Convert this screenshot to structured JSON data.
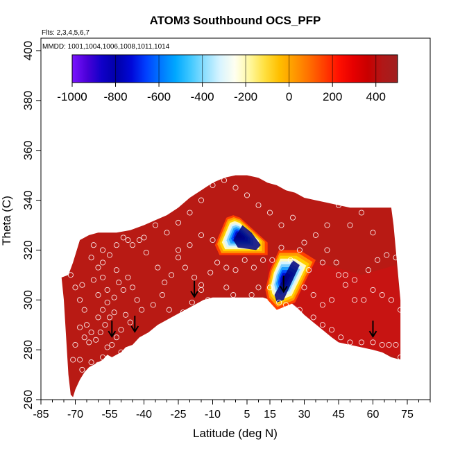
{
  "chart_data": {
    "type": "heatmap",
    "title": "ATOM3 Southbound OCS_PFP",
    "subtitle_flights": "Flts: 2,3,4,5,6,7",
    "subtitle_dates": "MMDD: 1001,1004,1006,1008,1011,1014",
    "xlabel": "Latitude (deg N)",
    "ylabel": "Theta (C)",
    "xlim": [
      -85,
      85
    ],
    "ylim": [
      260,
      405
    ],
    "x_ticks": [
      -85,
      -70,
      -55,
      -40,
      -25,
      -10,
      5,
      15,
      30,
      45,
      60,
      75
    ],
    "x_minor_step": 5,
    "y_ticks": [
      260,
      280,
      300,
      320,
      340,
      360,
      380,
      400
    ],
    "colorbar": {
      "range": [
        -1000,
        500
      ],
      "ticks": [
        -1000,
        -800,
        -600,
        -400,
        -200,
        0,
        200,
        400
      ],
      "colors": [
        "#7b14ff",
        "#4a00d8",
        "#1000c8",
        "#0000a8",
        "#0008d8",
        "#0040ff",
        "#0078ff",
        "#00a8ff",
        "#40c8ff",
        "#90e0ff",
        "#d8f4ff",
        "#fffff0",
        "#fff8a0",
        "#ffe040",
        "#ffbf00",
        "#ff9a00",
        "#ff7000",
        "#ff4000",
        "#ff1000",
        "#e60000",
        "#c80000",
        "#b01818",
        "#a02020"
      ]
    },
    "background_color": "#b81a14",
    "envelope_top": [
      [
        -76,
        309
      ],
      [
        -73,
        310
      ],
      [
        -71,
        315
      ],
      [
        -68,
        324
      ],
      [
        -64,
        326
      ],
      [
        -60,
        327
      ],
      [
        -52,
        327
      ],
      [
        -46,
        328
      ],
      [
        -40,
        330
      ],
      [
        -35,
        332
      ],
      [
        -30,
        334
      ],
      [
        -25,
        337
      ],
      [
        -20,
        341
      ],
      [
        -15,
        344
      ],
      [
        -10,
        347
      ],
      [
        -5,
        349
      ],
      [
        0,
        350
      ],
      [
        5,
        350
      ],
      [
        10,
        349
      ],
      [
        14,
        347
      ],
      [
        18,
        346
      ],
      [
        22,
        344
      ],
      [
        26,
        343
      ],
      [
        30,
        341
      ],
      [
        35,
        340
      ],
      [
        40,
        339
      ],
      [
        45,
        338
      ],
      [
        50,
        337
      ],
      [
        55,
        337
      ],
      [
        60,
        337
      ],
      [
        65,
        337
      ],
      [
        68,
        337
      ],
      [
        69,
        330
      ],
      [
        70,
        320
      ],
      [
        71,
        310
      ],
      [
        72,
        300
      ],
      [
        72,
        290
      ],
      [
        72,
        277
      ]
    ],
    "envelope_bottom": [
      [
        72,
        276
      ],
      [
        68,
        277
      ],
      [
        64,
        279
      ],
      [
        60,
        280
      ],
      [
        55,
        281
      ],
      [
        50,
        282
      ],
      [
        45,
        283
      ],
      [
        42,
        285
      ],
      [
        38,
        288
      ],
      [
        34,
        291
      ],
      [
        30,
        294
      ],
      [
        27,
        297
      ],
      [
        24,
        299
      ],
      [
        20,
        300
      ],
      [
        15,
        300
      ],
      [
        12,
        301
      ],
      [
        8,
        301
      ],
      [
        5,
        301
      ],
      [
        0,
        301
      ],
      [
        -5,
        301
      ],
      [
        -10,
        301
      ],
      [
        -14,
        300
      ],
      [
        -18,
        298
      ],
      [
        -22,
        296
      ],
      [
        -26,
        294
      ],
      [
        -30,
        292
      ],
      [
        -34,
        290
      ],
      [
        -38,
        287
      ],
      [
        -42,
        285
      ],
      [
        -45,
        282
      ],
      [
        -48,
        281
      ],
      [
        -50,
        279
      ],
      [
        -52,
        278
      ],
      [
        -54,
        277
      ],
      [
        -56,
        278
      ],
      [
        -58,
        276
      ],
      [
        -60,
        275
      ],
      [
        -62,
        274
      ],
      [
        -64,
        273
      ],
      [
        -66,
        271
      ],
      [
        -68,
        268
      ],
      [
        -69,
        266
      ],
      [
        -70,
        264
      ],
      [
        -71,
        261
      ],
      [
        -72,
        262
      ],
      [
        -73,
        270
      ],
      [
        -74,
        285
      ],
      [
        -75,
        300
      ],
      [
        -76,
        309
      ]
    ],
    "negative_anomalies": [
      {
        "polygon": [
          [
            -4,
            333
          ],
          [
            -1,
            334
          ],
          [
            2,
            333
          ],
          [
            14,
            323
          ],
          [
            14,
            318
          ],
          [
            -7,
            318
          ],
          [
            -9,
            322
          ]
        ],
        "core": [
          [
            3,
            330
          ],
          [
            7,
            327
          ],
          [
            11,
            322
          ],
          [
            9,
            320
          ],
          [
            1,
            321
          ],
          [
            -1,
            324
          ]
        ],
        "min_value": -850
      },
      {
        "polygon": [
          [
            19,
            320
          ],
          [
            28,
            320
          ],
          [
            35,
            316
          ],
          [
            26,
            299
          ],
          [
            18,
            296
          ],
          [
            14,
            300
          ],
          [
            13,
            304
          ],
          [
            15,
            312
          ]
        ],
        "core": [
          [
            25,
            316
          ],
          [
            28,
            314
          ],
          [
            21,
            300
          ],
          [
            18,
            299
          ],
          [
            17,
            302
          ]
        ],
        "min_value": -800
      }
    ],
    "sample_points": [
      [
        -72,
        310
      ],
      [
        -70,
        305
      ],
      [
        -68,
        300
      ],
      [
        -67,
        306
      ],
      [
        -66,
        296
      ],
      [
        -65,
        290
      ],
      [
        -64,
        283
      ],
      [
        -66,
        285
      ],
      [
        -68,
        289
      ],
      [
        -70,
        282
      ],
      [
        -71,
        276
      ],
      [
        -68,
        276
      ],
      [
        -67,
        272
      ],
      [
        -66,
        267
      ],
      [
        -63,
        275
      ],
      [
        -60,
        274
      ],
      [
        -58,
        277
      ],
      [
        -56,
        281
      ],
      [
        -54,
        282
      ],
      [
        -52,
        285
      ],
      [
        -50,
        279
      ],
      [
        -55,
        293
      ],
      [
        -53,
        295
      ],
      [
        -57,
        290
      ],
      [
        -59,
        287
      ],
      [
        -61,
        284
      ],
      [
        -63,
        287
      ],
      [
        -60,
        293
      ],
      [
        -58,
        296
      ],
      [
        -56,
        299
      ],
      [
        -60,
        302
      ],
      [
        -62,
        308
      ],
      [
        -58,
        309
      ],
      [
        -56,
        304
      ],
      [
        -53,
        301
      ],
      [
        -51,
        307
      ],
      [
        -49,
        304
      ],
      [
        -47,
        309
      ],
      [
        -45,
        305
      ],
      [
        -43,
        300
      ],
      [
        -41,
        296
      ],
      [
        -46,
        291
      ],
      [
        -48,
        294
      ],
      [
        -50,
        288
      ],
      [
        -52,
        312
      ],
      [
        -58,
        315
      ],
      [
        -60,
        313
      ],
      [
        -63,
        317
      ],
      [
        -62,
        322
      ],
      [
        -58,
        320
      ],
      [
        -55,
        318
      ],
      [
        -52,
        322
      ],
      [
        -49,
        325
      ],
      [
        -47,
        324
      ],
      [
        -45,
        322
      ],
      [
        -42,
        324
      ],
      [
        -39,
        319
      ],
      [
        -34,
        313
      ],
      [
        -31,
        307
      ],
      [
        -28,
        310
      ],
      [
        -25,
        317
      ],
      [
        -22,
        313
      ],
      [
        -18,
        309
      ],
      [
        -15,
        304
      ],
      [
        -12,
        300
      ],
      [
        -10,
        298
      ],
      [
        -7,
        297
      ],
      [
        -4,
        296
      ],
      [
        -1,
        295
      ],
      [
        2,
        294
      ],
      [
        5,
        294
      ],
      [
        -3,
        296
      ],
      [
        -36,
        298
      ],
      [
        -32,
        302
      ],
      [
        -29,
        296
      ],
      [
        -26,
        292
      ],
      [
        -23,
        295
      ],
      [
        -19,
        299
      ],
      [
        -15,
        306
      ],
      [
        -11,
        311
      ],
      [
        -8,
        315
      ],
      [
        -4,
        313
      ],
      [
        0,
        312
      ],
      [
        4,
        316
      ],
      [
        8,
        313
      ],
      [
        12,
        316
      ],
      [
        16,
        316
      ],
      [
        20,
        321
      ],
      [
        24,
        316
      ],
      [
        28,
        320
      ],
      [
        32,
        312
      ],
      [
        38,
        315
      ],
      [
        40,
        320
      ],
      [
        44,
        315
      ],
      [
        48,
        310
      ],
      [
        52,
        308
      ],
      [
        58,
        312
      ],
      [
        62,
        316
      ],
      [
        66,
        318
      ],
      [
        70,
        317
      ],
      [
        60,
        327
      ],
      [
        55,
        335
      ],
      [
        50,
        330
      ],
      [
        45,
        338
      ],
      [
        40,
        330
      ],
      [
        35,
        326
      ],
      [
        30,
        323
      ],
      [
        25,
        333
      ],
      [
        20,
        330
      ],
      [
        15,
        335
      ],
      [
        10,
        338
      ],
      [
        5,
        342
      ],
      [
        0,
        345
      ],
      [
        -5,
        348
      ],
      [
        -10,
        346
      ],
      [
        -15,
        340
      ],
      [
        -20,
        335
      ],
      [
        -25,
        331
      ],
      [
        -30,
        327
      ],
      [
        -35,
        330
      ],
      [
        -40,
        325
      ],
      [
        -10,
        324
      ],
      [
        -15,
        326
      ],
      [
        -20,
        322
      ],
      [
        -25,
        320
      ],
      [
        -4,
        305
      ],
      [
        -1,
        302
      ],
      [
        3,
        299
      ],
      [
        7,
        302
      ],
      [
        10,
        305
      ],
      [
        15,
        305
      ],
      [
        19,
        299
      ],
      [
        22,
        298
      ],
      [
        25,
        296
      ],
      [
        28,
        296
      ],
      [
        31,
        291
      ],
      [
        34,
        293
      ],
      [
        38,
        290
      ],
      [
        42,
        288
      ],
      [
        46,
        285
      ],
      [
        50,
        283
      ],
      [
        55,
        283
      ],
      [
        60,
        283
      ],
      [
        64,
        282
      ],
      [
        67,
        282
      ],
      [
        70,
        282
      ],
      [
        72,
        277
      ],
      [
        72,
        296
      ],
      [
        68,
        300
      ],
      [
        64,
        302
      ],
      [
        60,
        304
      ],
      [
        56,
        300
      ],
      [
        52,
        300
      ],
      [
        48,
        306
      ],
      [
        45,
        310
      ],
      [
        42,
        300
      ],
      [
        38,
        298
      ],
      [
        34,
        302
      ],
      [
        30,
        305
      ]
    ],
    "arrows": [
      [
        -54,
        285
      ],
      [
        -44,
        287
      ],
      [
        -18,
        301
      ],
      [
        21,
        303
      ],
      [
        60,
        285
      ]
    ]
  }
}
